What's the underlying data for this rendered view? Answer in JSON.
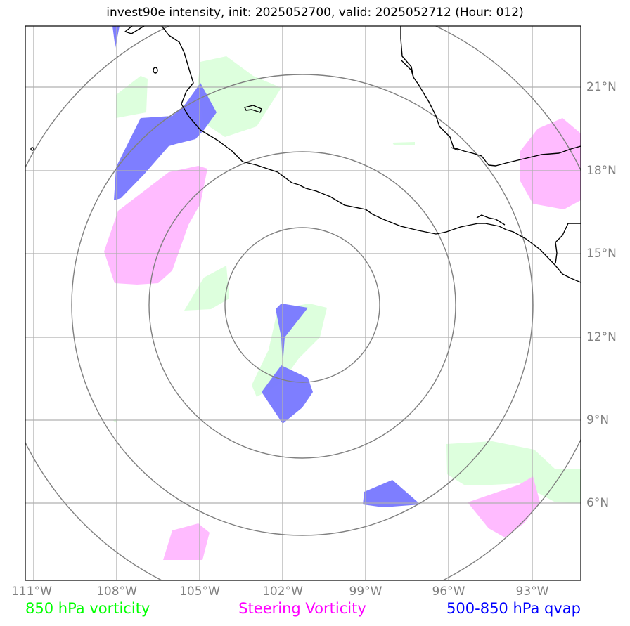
{
  "title": "invest90e intensity, init: 2025052700, valid: 2025052712 (Hour: 012)",
  "x_ticks": [
    "111°W",
    "108°W",
    "105°W",
    "102°W",
    "99°W",
    "96°W",
    "93°W"
  ],
  "y_ticks": [
    "21°N",
    "18°N",
    "15°N",
    "12°N",
    "9°N",
    "6°N"
  ],
  "legend": {
    "left": {
      "label": "850 hPa vorticity",
      "color": "#00ff00"
    },
    "middle": {
      "label": "Steering Vorticity",
      "color": "#ff00ff"
    },
    "right": {
      "label": "500-850 hPa qvap",
      "color": "#0000ff"
    }
  },
  "colors": {
    "vorticity_850_fill": "#ddffdd",
    "steering_fill": "#ffbbff",
    "qvap_fill": "#7777ff",
    "range_rings": "#808080",
    "gridlines": "#b0b0b0",
    "coastline": "#000000"
  }
}
